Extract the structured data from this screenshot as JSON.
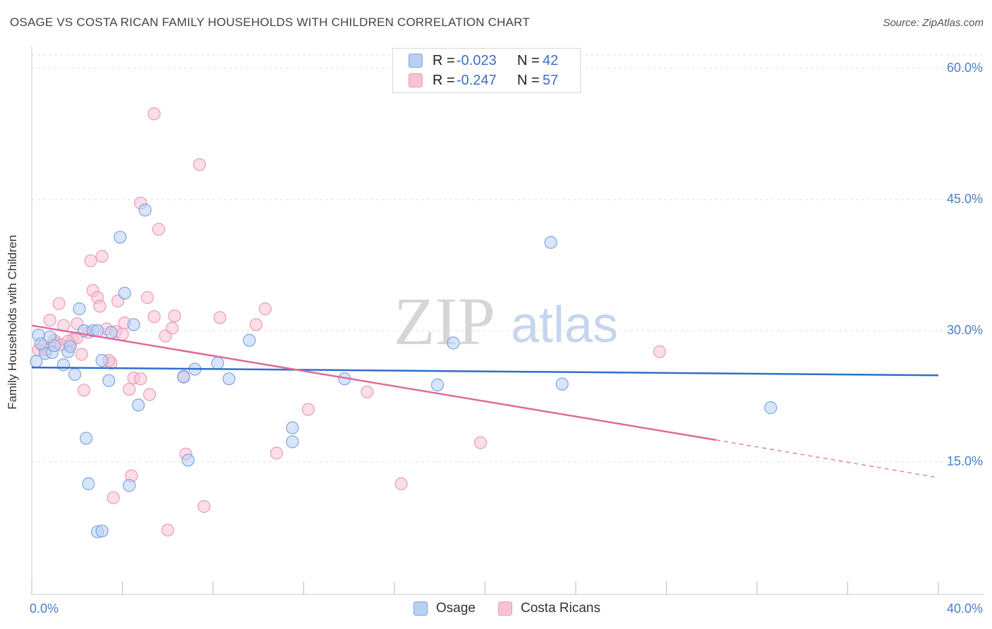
{
  "title": "OSAGE VS COSTA RICAN FAMILY HOUSEHOLDS WITH CHILDREN CORRELATION CHART",
  "source": "Source: ZipAtlas.com",
  "watermark": {
    "zip": "ZIP",
    "atlas": "atlas"
  },
  "legend": {
    "rows": [
      {
        "r_label": "R =",
        "r_value": "-0.023",
        "n_label": "N =",
        "n_value": "42"
      },
      {
        "r_label": "R =",
        "r_value": "-0.247",
        "n_label": "N =",
        "n_value": "57"
      }
    ]
  },
  "colors": {
    "osage_fill": "#b8d0f2",
    "osage_stroke": "#7aa6e0",
    "osage_line": "#2f6fcc",
    "costa_fill": "#f7c3d4",
    "costa_stroke": "#ec9bb6",
    "costa_line": "#e0699a",
    "tick_text": "#4a7fc9",
    "grid": "#e2e2e2"
  },
  "chart_data": {
    "type": "scatter",
    "title": "OSAGE VS COSTA RICAN FAMILY HOUSEHOLDS WITH CHILDREN CORRELATION CHART",
    "xlabel": "",
    "ylabel": "Family Households with Children",
    "xlim": [
      0,
      40
    ],
    "ylim": [
      0,
      62
    ],
    "y_ticks": [
      15,
      30,
      45,
      60
    ],
    "y_tick_labels": [
      "15.0%",
      "30.0%",
      "45.0%",
      "60.0%"
    ],
    "x_tick_labels": [
      "0.0%",
      "40.0%"
    ],
    "grid": true,
    "series": [
      {
        "name": "Osage",
        "r": -0.023,
        "n": 42,
        "trend": {
          "x0": 0,
          "y0": 25.8,
          "x1": 40,
          "y1": 24.9
        },
        "points": [
          [
            0.2,
            26.5
          ],
          [
            0.3,
            29.5
          ],
          [
            0.6,
            27.4
          ],
          [
            0.8,
            29.3
          ],
          [
            0.9,
            27.5
          ],
          [
            1.4,
            26.1
          ],
          [
            1.6,
            27.6
          ],
          [
            1.7,
            28.2
          ],
          [
            1.9,
            25.0
          ],
          [
            2.1,
            32.5
          ],
          [
            2.3,
            30.0
          ],
          [
            2.4,
            17.7
          ],
          [
            2.5,
            12.5
          ],
          [
            2.7,
            30.0
          ],
          [
            2.9,
            7.0
          ],
          [
            3.1,
            7.1
          ],
          [
            3.1,
            26.6
          ],
          [
            3.4,
            24.3
          ],
          [
            3.5,
            29.8
          ],
          [
            3.9,
            40.7
          ],
          [
            4.1,
            34.3
          ],
          [
            4.3,
            12.3
          ],
          [
            4.5,
            30.7
          ],
          [
            4.7,
            21.5
          ],
          [
            5.0,
            43.8
          ],
          [
            6.7,
            24.7
          ],
          [
            6.9,
            15.2
          ],
          [
            7.2,
            25.6
          ],
          [
            8.2,
            26.3
          ],
          [
            8.7,
            24.5
          ],
          [
            9.6,
            28.9
          ],
          [
            11.5,
            17.3
          ],
          [
            11.5,
            18.9
          ],
          [
            13.8,
            24.5
          ],
          [
            17.9,
            23.8
          ],
          [
            18.6,
            28.6
          ],
          [
            22.9,
            40.1
          ],
          [
            23.4,
            23.9
          ],
          [
            32.6,
            21.2
          ],
          [
            0.4,
            28.5
          ],
          [
            1.0,
            28.3
          ],
          [
            2.9,
            30.0
          ]
        ]
      },
      {
        "name": "Costa Ricans",
        "r": -0.247,
        "n": 57,
        "trend": {
          "x0": 0,
          "y0": 30.6,
          "x1": 30.2,
          "y1": 17.5,
          "dash_x1": 40,
          "dash_y1": 13.2
        },
        "points": [
          [
            0.3,
            27.8
          ],
          [
            0.5,
            28.2
          ],
          [
            0.6,
            27.8
          ],
          [
            0.8,
            31.2
          ],
          [
            1.0,
            28.9
          ],
          [
            1.1,
            28.6
          ],
          [
            1.2,
            33.1
          ],
          [
            1.3,
            28.4
          ],
          [
            1.4,
            30.6
          ],
          [
            1.7,
            28.5
          ],
          [
            1.8,
            29.0
          ],
          [
            2.0,
            30.8
          ],
          [
            2.2,
            27.3
          ],
          [
            2.3,
            23.2
          ],
          [
            2.5,
            29.8
          ],
          [
            2.6,
            38.0
          ],
          [
            2.7,
            34.6
          ],
          [
            2.9,
            33.8
          ],
          [
            3.0,
            32.8
          ],
          [
            3.1,
            38.5
          ],
          [
            3.3,
            30.2
          ],
          [
            3.5,
            26.3
          ],
          [
            3.6,
            10.9
          ],
          [
            3.7,
            29.9
          ],
          [
            3.8,
            33.4
          ],
          [
            4.0,
            29.6
          ],
          [
            4.1,
            30.9
          ],
          [
            4.3,
            23.3
          ],
          [
            4.4,
            13.4
          ],
          [
            4.5,
            24.6
          ],
          [
            4.8,
            24.5
          ],
          [
            4.8,
            44.6
          ],
          [
            5.1,
            33.8
          ],
          [
            5.2,
            22.7
          ],
          [
            5.4,
            31.6
          ],
          [
            5.4,
            54.8
          ],
          [
            5.6,
            41.6
          ],
          [
            5.9,
            29.4
          ],
          [
            6.0,
            7.2
          ],
          [
            6.2,
            30.3
          ],
          [
            6.3,
            31.7
          ],
          [
            6.7,
            24.8
          ],
          [
            6.8,
            15.9
          ],
          [
            7.4,
            49.0
          ],
          [
            7.6,
            9.9
          ],
          [
            8.3,
            31.5
          ],
          [
            9.9,
            30.7
          ],
          [
            10.3,
            32.5
          ],
          [
            10.8,
            16.0
          ],
          [
            12.2,
            21.0
          ],
          [
            14.8,
            23.0
          ],
          [
            16.3,
            12.5
          ],
          [
            19.8,
            17.2
          ],
          [
            27.7,
            27.6
          ],
          [
            2.0,
            29.2
          ],
          [
            1.6,
            28.8
          ],
          [
            3.4,
            26.6
          ]
        ]
      }
    ]
  },
  "bottom_legend": [
    {
      "label": "Osage"
    },
    {
      "label": "Costa Ricans"
    }
  ]
}
